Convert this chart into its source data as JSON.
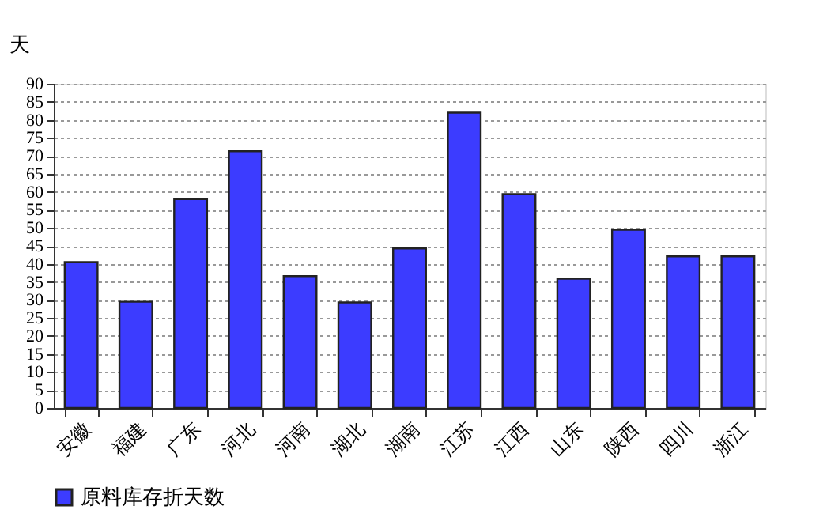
{
  "chart_data": {
    "type": "bar",
    "ylabel": "天",
    "categories": [
      "安徽",
      "福建",
      "广东",
      "河北",
      "河南",
      "湖北",
      "湖南",
      "江苏",
      "江西",
      "山东",
      "陕西",
      "四川",
      "浙江"
    ],
    "series": [
      {
        "name": "原料库存折天数",
        "color": "#3c3cff",
        "values": [
          40.5,
          29.5,
          58,
          71.3,
          36.6,
          29.3,
          44.3,
          82,
          59.4,
          35.9,
          49.5,
          42.1,
          42.1
        ]
      }
    ],
    "ylim": [
      0,
      90
    ],
    "yticks": [
      0,
      5,
      10,
      15,
      20,
      25,
      30,
      35,
      40,
      45,
      50,
      55,
      60,
      65,
      70,
      75,
      80,
      85,
      90
    ],
    "grid": "y",
    "legend": "bottom"
  }
}
